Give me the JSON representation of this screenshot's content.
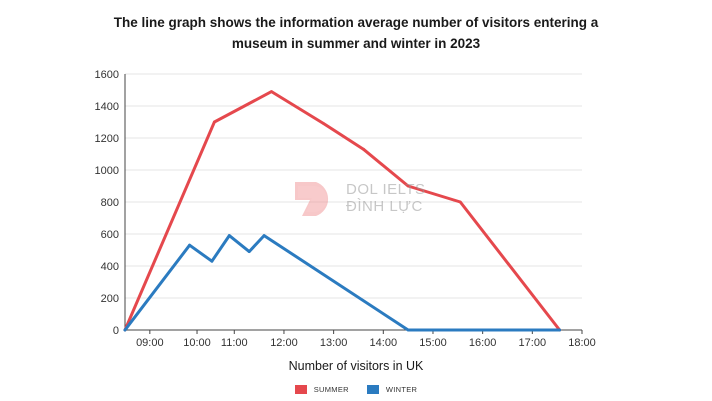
{
  "chart_data": {
    "type": "line",
    "title_lines": [
      "The line graph shows the information average number of visitors entering a",
      "museum in summer and winter in 2023"
    ],
    "xlabel": "Number of visitors in UK",
    "ylabel": "",
    "xlim": [
      8.8,
      18.0
    ],
    "ylim": [
      0,
      1600
    ],
    "xticks": [
      {
        "value": 9.3,
        "label": "09:00"
      },
      {
        "value": 10.25,
        "label": "10:00"
      },
      {
        "value": 11.0,
        "label": "11:00"
      },
      {
        "value": 12.0,
        "label": "12:00"
      },
      {
        "value": 13.0,
        "label": "13:00"
      },
      {
        "value": 14.0,
        "label": "14:00"
      },
      {
        "value": 15.0,
        "label": "15:00"
      },
      {
        "value": 16.0,
        "label": "16:00"
      },
      {
        "value": 17.0,
        "label": "17:00"
      },
      {
        "value": 18.0,
        "label": "18:00"
      }
    ],
    "yticks": [
      0,
      200,
      400,
      600,
      800,
      1000,
      1200,
      1400,
      1600
    ],
    "grid": true,
    "series": [
      {
        "name": "SUMMER",
        "color": "#e5484d",
        "points": [
          [
            8.8,
            0
          ],
          [
            10.6,
            1300
          ],
          [
            11.75,
            1490
          ],
          [
            12.8,
            1290
          ],
          [
            13.6,
            1130
          ],
          [
            14.5,
            900
          ],
          [
            15.55,
            800
          ],
          [
            17.55,
            0
          ]
        ]
      },
      {
        "name": "WINTER",
        "color": "#2b7bc0",
        "points": [
          [
            8.8,
            0
          ],
          [
            10.1,
            530
          ],
          [
            10.55,
            430
          ],
          [
            10.9,
            590
          ],
          [
            11.3,
            490
          ],
          [
            11.6,
            590
          ],
          [
            14.5,
            0
          ],
          [
            17.55,
            0
          ]
        ]
      }
    ]
  },
  "watermark": {
    "line1": "DOL IELTS",
    "line2": "ĐÌNH LỰC",
    "logo_color": "#e5484d"
  }
}
